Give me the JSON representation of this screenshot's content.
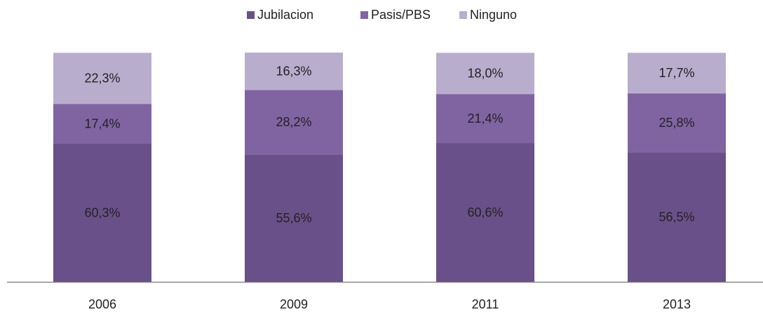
{
  "chart_data": {
    "type": "stacked_bar",
    "categories": [
      "2006",
      "2009",
      "2011",
      "2013"
    ],
    "series": [
      {
        "name": "Jubilacion",
        "color": "#6a5089",
        "values": [
          60.3,
          55.6,
          60.6,
          56.5
        ],
        "value_labels": [
          "60,3%",
          "55,6%",
          "60,6%",
          "56,5%"
        ]
      },
      {
        "name": "Pasis/PBS",
        "color": "#8064a2",
        "values": [
          17.4,
          28.2,
          21.4,
          25.8
        ],
        "value_labels": [
          "17,4%",
          "28,2%",
          "21,4%",
          "25,8%"
        ]
      },
      {
        "name": "Ninguno",
        "color": "#b9adcd",
        "values": [
          22.3,
          16.3,
          18.0,
          17.7
        ],
        "value_labels": [
          "22,3%",
          "16,3%",
          "18,0%",
          "17,7%"
        ]
      }
    ],
    "legend": "top"
  }
}
